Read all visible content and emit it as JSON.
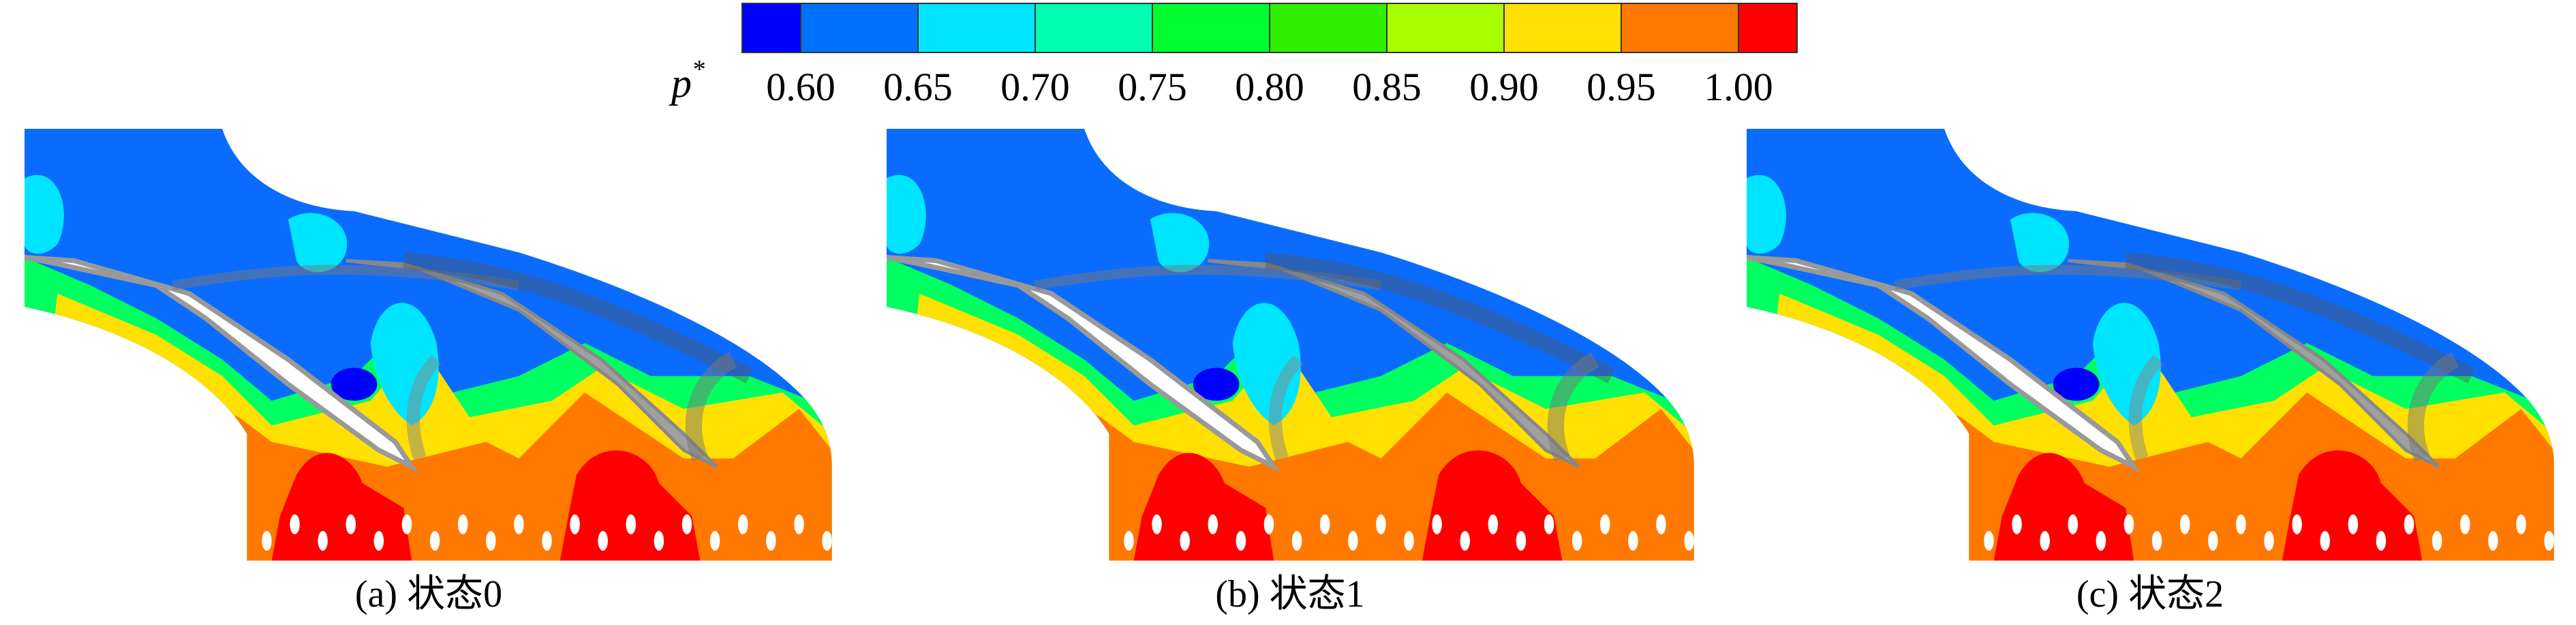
{
  "colorbar": {
    "label": "p",
    "label_superscript": "*",
    "ticks": [
      {
        "value": 0.6,
        "label": "0.60"
      },
      {
        "value": 0.65,
        "label": "0.65"
      },
      {
        "value": 0.7,
        "label": "0.70"
      },
      {
        "value": 0.75,
        "label": "0.75"
      },
      {
        "value": 0.8,
        "label": "0.80"
      },
      {
        "value": 0.85,
        "label": "0.85"
      },
      {
        "value": 0.9,
        "label": "0.90"
      },
      {
        "value": 0.95,
        "label": "0.95"
      },
      {
        "value": 1.0,
        "label": "1.00"
      }
    ],
    "colors": [
      "#0000ff",
      "#0070ff",
      "#00e5ff",
      "#00ffb0",
      "#00ff30",
      "#30f000",
      "#a8ff00",
      "#ffe000",
      "#ff7800",
      "#ff0000"
    ]
  },
  "panels": [
    {
      "caption": "(a) 状态0"
    },
    {
      "caption": "(b) 状态1"
    },
    {
      "caption": "(c) 状态2"
    }
  ]
}
